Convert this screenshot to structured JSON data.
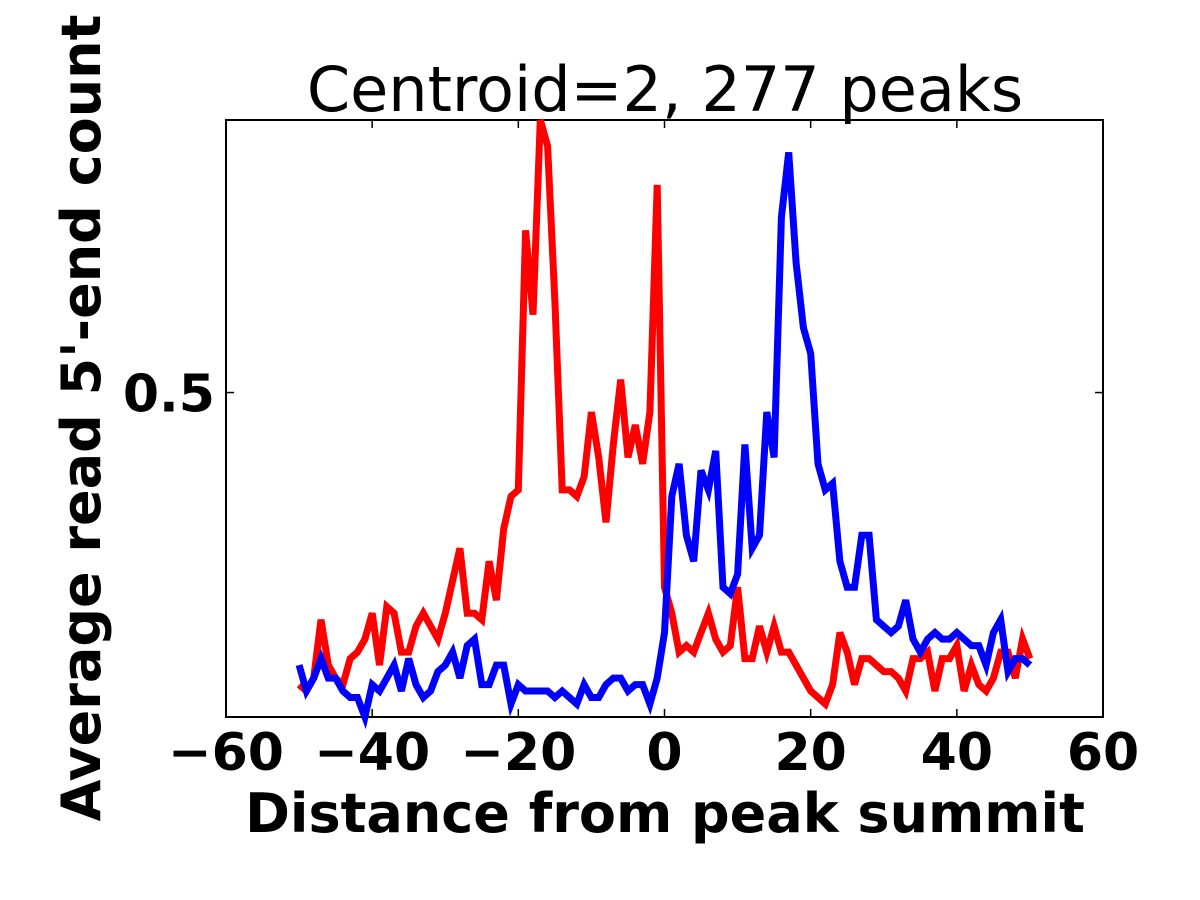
{
  "chart_data": {
    "type": "line",
    "title": "Centroid=2, 277 peaks",
    "xlabel": "Distance from peak summit",
    "ylabel": "Average read 5'-end count",
    "xlim": [
      -60,
      60
    ],
    "ylim": [
      0.0,
      0.92
    ],
    "xticks": [
      -60,
      -40,
      -20,
      0,
      20,
      40,
      60
    ],
    "xtick_labels": [
      "−60",
      "−40",
      "−20",
      "0",
      "20",
      "40",
      "60"
    ],
    "yticks": [
      0.5
    ],
    "ytick_labels": [
      "0.5"
    ],
    "grid": false,
    "legend": "none",
    "x": [
      -50,
      -49,
      -48,
      -47,
      -46,
      -45,
      -44,
      -43,
      -42,
      -41,
      -40,
      -39,
      -38,
      -37,
      -36,
      -35,
      -34,
      -33,
      -32,
      -31,
      -30,
      -29,
      -28,
      -27,
      -26,
      -25,
      -24,
      -23,
      -22,
      -21,
      -20,
      -19,
      -18,
      -17,
      -16,
      -15,
      -14,
      -13,
      -12,
      -11,
      -10,
      -9,
      -8,
      -7,
      -6,
      -5,
      -4,
      -3,
      -2,
      -1,
      0,
      1,
      2,
      3,
      4,
      5,
      6,
      7,
      8,
      9,
      10,
      11,
      12,
      13,
      14,
      15,
      16,
      17,
      18,
      19,
      20,
      21,
      22,
      23,
      24,
      25,
      26,
      27,
      28,
      29,
      30,
      31,
      32,
      33,
      34,
      35,
      36,
      37,
      38,
      39,
      40,
      41,
      42,
      43,
      44,
      45,
      46,
      47,
      48,
      49,
      50
    ],
    "series": [
      {
        "color": "#ff0000",
        "values": [
          0.05,
          0.04,
          0.06,
          0.15,
          0.08,
          0.06,
          0.05,
          0.09,
          0.1,
          0.12,
          0.16,
          0.08,
          0.17,
          0.16,
          0.1,
          0.1,
          0.14,
          0.16,
          0.14,
          0.12,
          0.16,
          0.21,
          0.26,
          0.16,
          0.16,
          0.15,
          0.24,
          0.18,
          0.29,
          0.34,
          0.35,
          0.75,
          0.62,
          0.92,
          0.88,
          0.64,
          0.35,
          0.35,
          0.34,
          0.37,
          0.47,
          0.4,
          0.3,
          0.42,
          0.52,
          0.4,
          0.45,
          0.39,
          0.47,
          0.82,
          0.2,
          0.16,
          0.1,
          0.11,
          0.1,
          0.13,
          0.16,
          0.12,
          0.1,
          0.11,
          0.2,
          0.09,
          0.09,
          0.14,
          0.1,
          0.14,
          0.1,
          0.1,
          0.08,
          0.06,
          0.04,
          0.03,
          0.02,
          0.05,
          0.13,
          0.1,
          0.05,
          0.09,
          0.09,
          0.08,
          0.07,
          0.07,
          0.06,
          0.04,
          0.09,
          0.09,
          0.1,
          0.04,
          0.09,
          0.09,
          0.11,
          0.04,
          0.08,
          0.05,
          0.04,
          0.06,
          0.1,
          0.1,
          0.06,
          0.12,
          0.09
        ]
      },
      {
        "color": "#0000ff",
        "values": [
          0.08,
          0.04,
          0.06,
          0.09,
          0.06,
          0.06,
          0.04,
          0.03,
          0.03,
          0.0,
          0.05,
          0.04,
          0.06,
          0.08,
          0.04,
          0.09,
          0.05,
          0.03,
          0.04,
          0.07,
          0.08,
          0.1,
          0.06,
          0.11,
          0.12,
          0.05,
          0.05,
          0.08,
          0.08,
          0.02,
          0.05,
          0.04,
          0.04,
          0.04,
          0.04,
          0.03,
          0.04,
          0.03,
          0.02,
          0.05,
          0.03,
          0.03,
          0.05,
          0.06,
          0.06,
          0.04,
          0.05,
          0.05,
          0.02,
          0.06,
          0.13,
          0.34,
          0.39,
          0.28,
          0.24,
          0.38,
          0.35,
          0.41,
          0.2,
          0.19,
          0.22,
          0.42,
          0.26,
          0.28,
          0.47,
          0.4,
          0.77,
          0.87,
          0.7,
          0.6,
          0.56,
          0.39,
          0.35,
          0.36,
          0.24,
          0.2,
          0.2,
          0.28,
          0.28,
          0.15,
          0.14,
          0.13,
          0.14,
          0.18,
          0.12,
          0.1,
          0.12,
          0.13,
          0.12,
          0.12,
          0.13,
          0.12,
          0.11,
          0.11,
          0.08,
          0.13,
          0.15,
          0.07,
          0.09,
          0.09,
          0.08
        ]
      }
    ]
  }
}
